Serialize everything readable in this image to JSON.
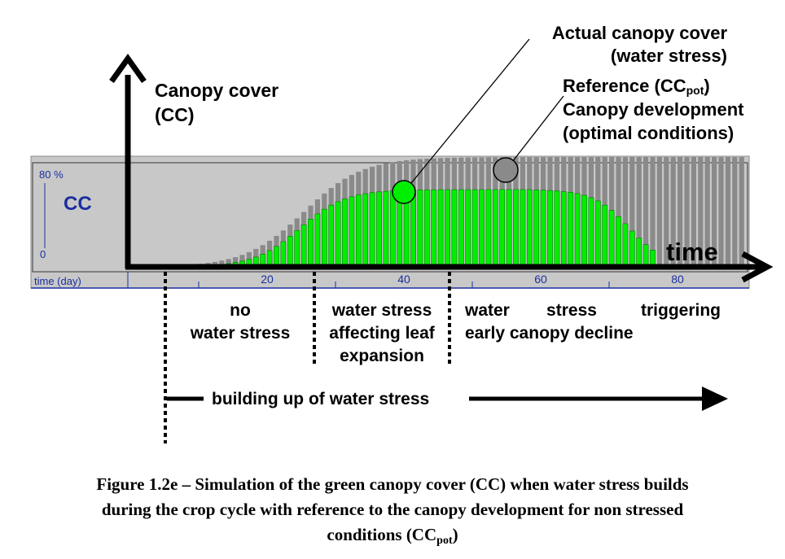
{
  "annotations": {
    "actual_line1": "Actual canopy cover",
    "actual_line2": "(water stress)",
    "ref_prefix": "Reference (CC",
    "ref_sub": "pot",
    "ref_suffix": ")",
    "ref_line2": "Canopy development",
    "ref_line3": "(optimal conditions)",
    "yaxis_line1": "Canopy cover",
    "yaxis_line2": "(CC)",
    "time": "time"
  },
  "panel": {
    "top_label": "80 %",
    "bottom_label": "0",
    "cc_label": "CC",
    "xaxis_label": "time (day)",
    "ticks": [
      "20",
      "40",
      "60",
      "80"
    ]
  },
  "phases": {
    "p1_line1": "no",
    "p1_line2": "water stress",
    "p2_line1": "water stress",
    "p2_line2": "affecting leaf",
    "p2_line3": "expansion",
    "p3_w1": "water",
    "p3_w2": "stress",
    "p3_w3": "triggering",
    "p3_line2": "early canopy decline",
    "building": "building up of water stress"
  },
  "caption": {
    "line1": "Figure 1.2e – Simulation of the green canopy cover (CC) when water stress builds",
    "line2": "during the crop cycle with reference to the canopy development for non stressed",
    "line3_prefix": "conditions (CC",
    "line3_sub": "pot",
    "line3_suffix": ")"
  },
  "colors": {
    "actual": "#00ee00",
    "reference": "#8a8a8a",
    "panel_bg": "#c8c8c8",
    "blue": "#1a2fa0"
  }
}
